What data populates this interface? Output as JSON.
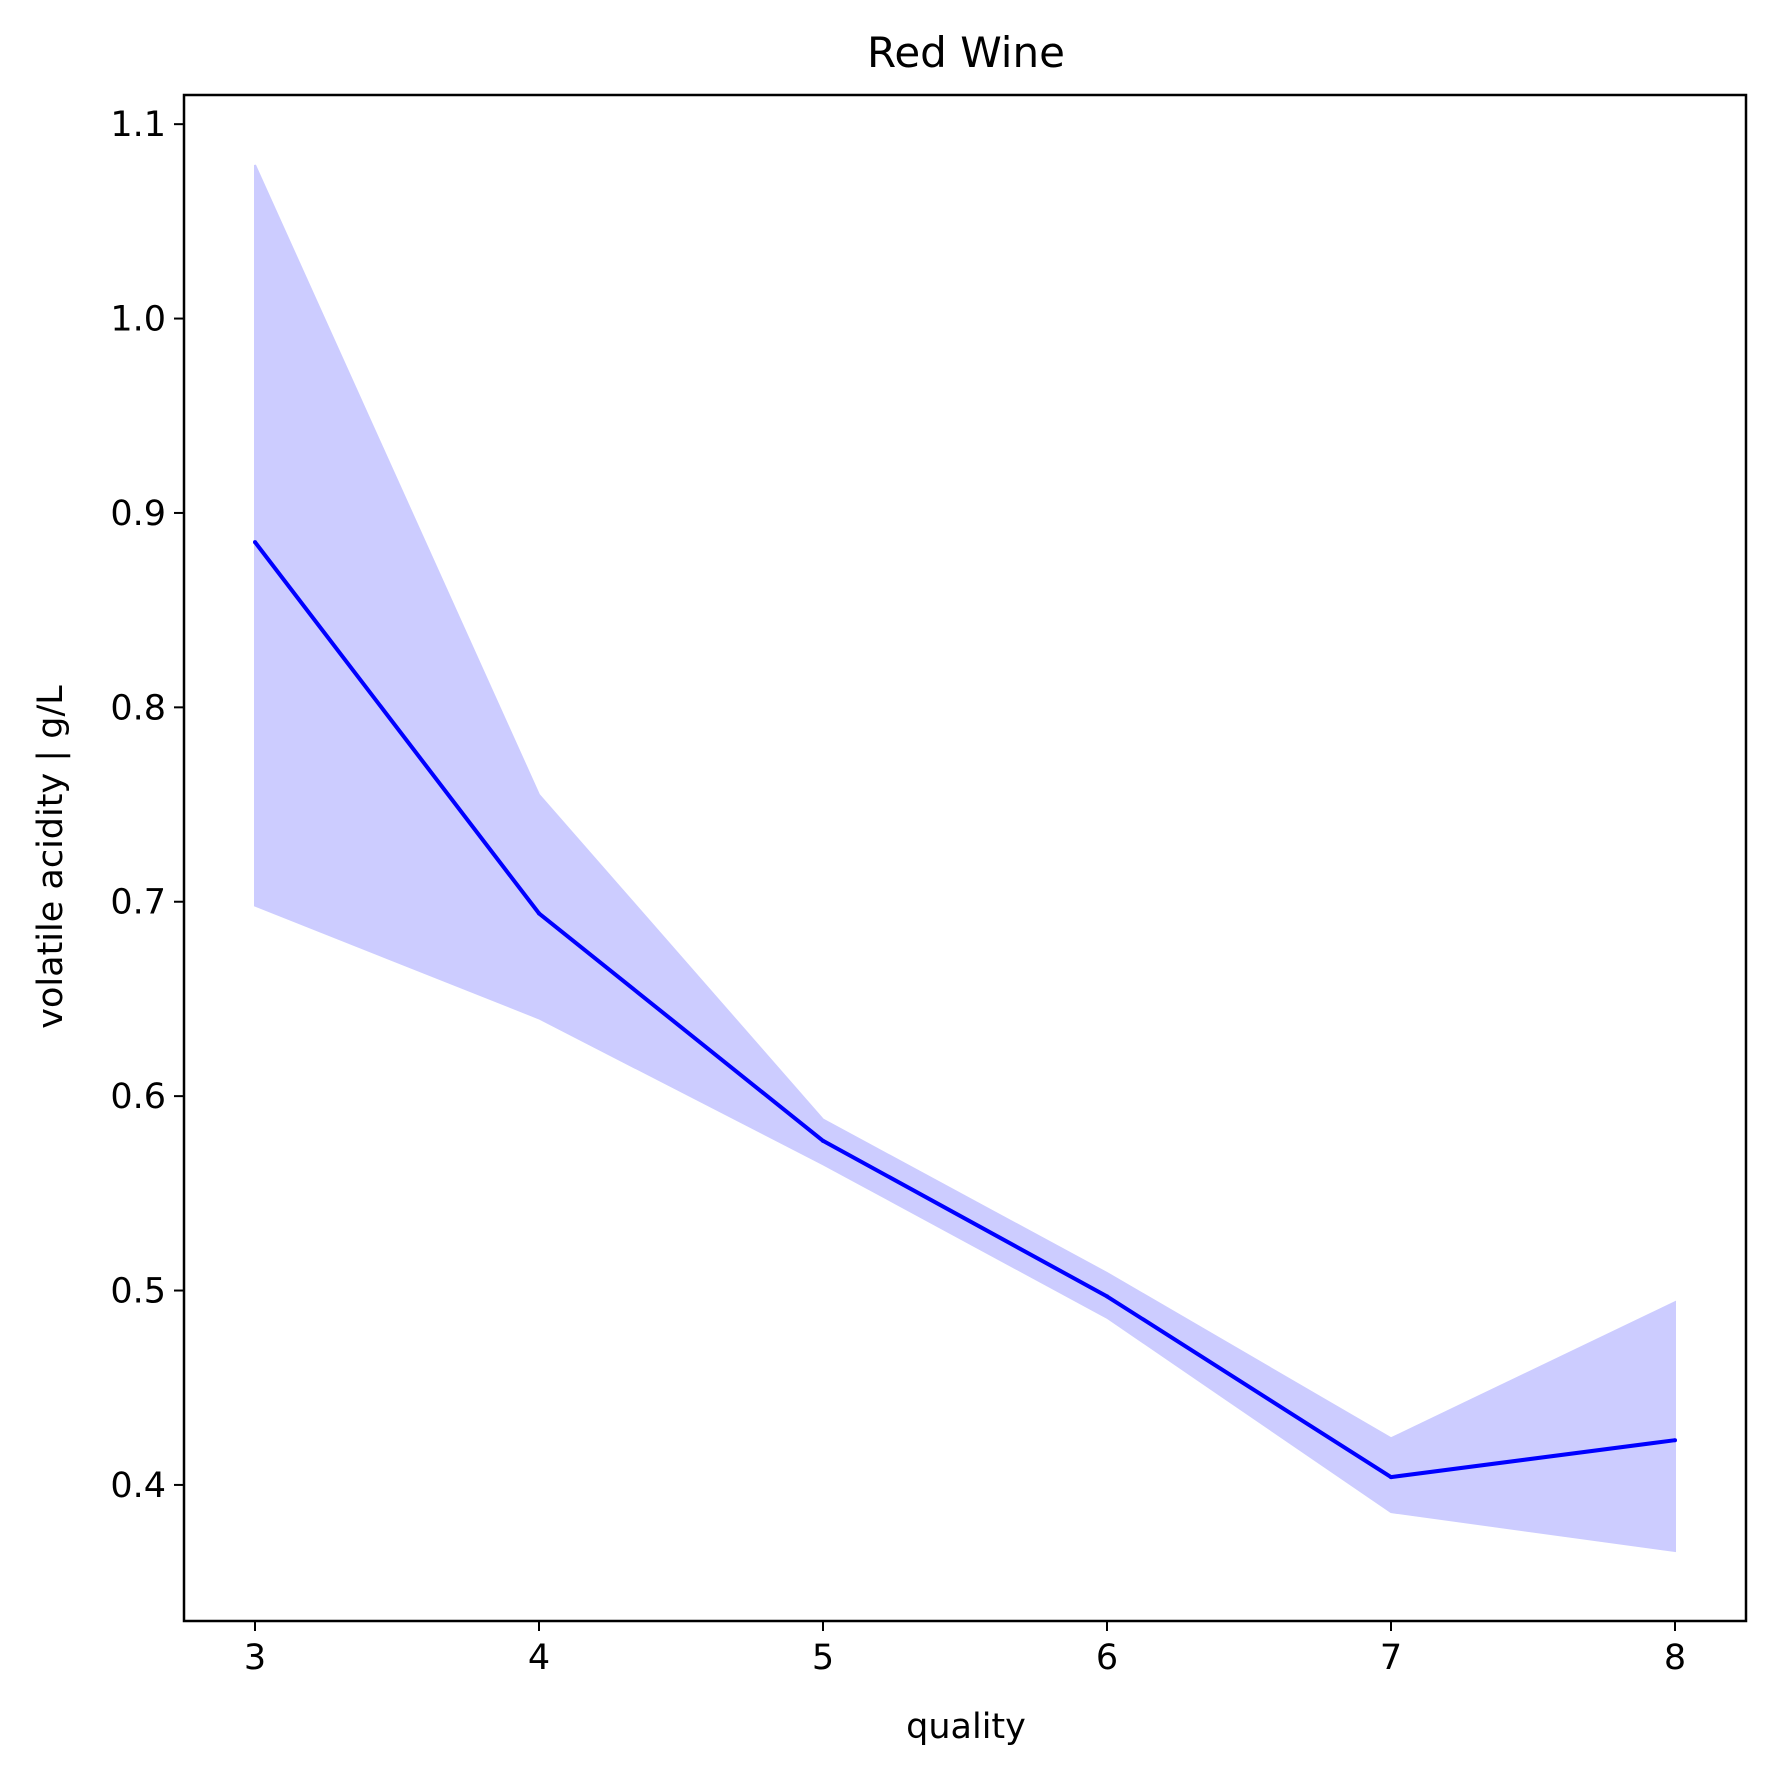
{
  "chart_data": {
    "type": "line",
    "title": "Red Wine",
    "xlabel": "quality",
    "ylabel": "volatile acidity | g/L",
    "x": [
      3,
      4,
      5,
      6,
      7,
      8
    ],
    "x_ticks": [
      "3",
      "4",
      "5",
      "6",
      "7",
      "8"
    ],
    "y_ticks": [
      "0.4",
      "0.5",
      "0.6",
      "0.7",
      "0.8",
      "0.9",
      "1.0",
      "1.1"
    ],
    "xlim": [
      2.75,
      8.25
    ],
    "ylim": [
      0.33,
      1.115
    ],
    "grid": false,
    "legend": "none",
    "series": [
      {
        "values": [
          0.885,
          0.694,
          0.577,
          0.497,
          0.404,
          0.423
        ],
        "band_lower": [
          0.698,
          0.64,
          0.565,
          0.486,
          0.386,
          0.366
        ],
        "band_upper": [
          1.079,
          0.755,
          0.588,
          0.509,
          0.424,
          0.494
        ],
        "color": "#0000ff",
        "band_color": "#ccccff"
      }
    ]
  }
}
